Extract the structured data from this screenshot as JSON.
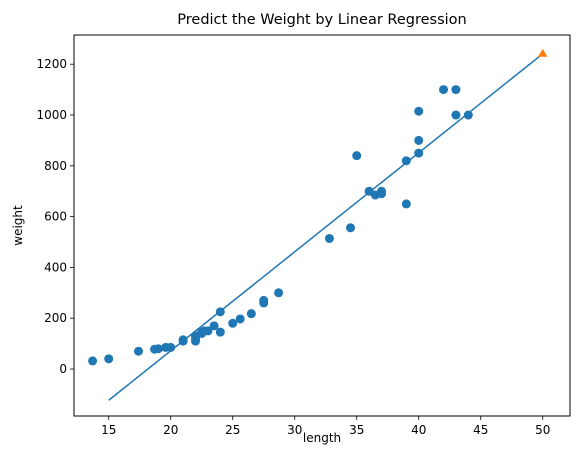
{
  "chart_data": {
    "type": "scatter",
    "title": "Predict the Weight by Linear Regression",
    "xlabel": "length",
    "ylabel": "weight",
    "xlim": [
      12.2,
      52.2
    ],
    "ylim": [
      -185,
      1315
    ],
    "xticks": [
      15,
      20,
      25,
      30,
      35,
      40,
      45,
      50
    ],
    "yticks": [
      0,
      200,
      400,
      600,
      800,
      1000,
      1200
    ],
    "grid": false,
    "legend": "none",
    "series": [
      {
        "kind": "scatter",
        "color": "#1f77b4",
        "marker": "circle",
        "points": [
          [
            13.7,
            32
          ],
          [
            15.0,
            40
          ],
          [
            17.4,
            70
          ],
          [
            18.7,
            78
          ],
          [
            19.0,
            80
          ],
          [
            19.6,
            85
          ],
          [
            20.0,
            85
          ],
          [
            21.0,
            110
          ],
          [
            21.0,
            115
          ],
          [
            22.0,
            110
          ],
          [
            22.0,
            120
          ],
          [
            22.0,
            130
          ],
          [
            22.5,
            140
          ],
          [
            22.5,
            145
          ],
          [
            22.7,
            150
          ],
          [
            23.0,
            150
          ],
          [
            23.5,
            170
          ],
          [
            24.0,
            145
          ],
          [
            24.0,
            225
          ],
          [
            25.0,
            180
          ],
          [
            25.6,
            197
          ],
          [
            26.5,
            218
          ],
          [
            27.5,
            260
          ],
          [
            27.5,
            270
          ],
          [
            28.7,
            300
          ],
          [
            32.8,
            514
          ],
          [
            34.5,
            556
          ],
          [
            35.0,
            840
          ],
          [
            36.0,
            700
          ],
          [
            36.5,
            685
          ],
          [
            37.0,
            690
          ],
          [
            37.0,
            700
          ],
          [
            39.0,
            820
          ],
          [
            39.0,
            650
          ],
          [
            40.0,
            850
          ],
          [
            40.0,
            900
          ],
          [
            40.0,
            1015
          ],
          [
            42.0,
            1100
          ],
          [
            43.0,
            1000
          ],
          [
            43.0,
            1100
          ],
          [
            44.0,
            1000
          ]
        ]
      },
      {
        "kind": "line",
        "color": "#1f77b4",
        "points": [
          [
            15,
            -123
          ],
          [
            50,
            1241
          ]
        ]
      },
      {
        "kind": "scatter",
        "color": "#ff7f0e",
        "marker": "triangle",
        "points": [
          [
            50,
            1241
          ]
        ]
      }
    ]
  }
}
